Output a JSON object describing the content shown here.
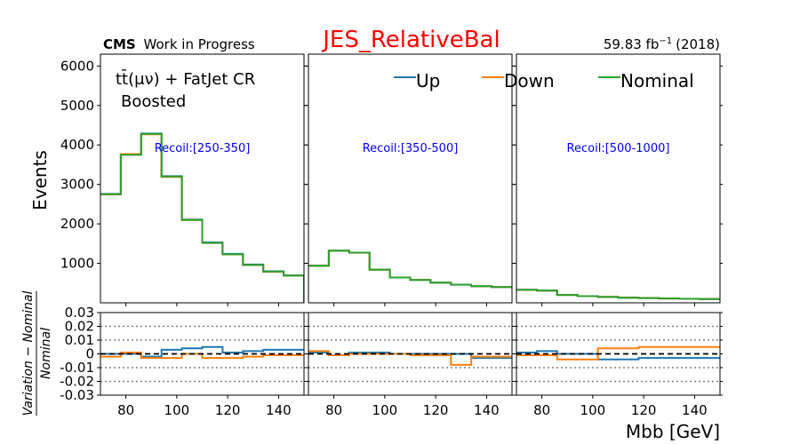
{
  "figure": {
    "cms_label": "CMS",
    "cms_suffix": "Work in Progress",
    "title": "JES_RelativeBal",
    "title_color": "#ff0000",
    "lumi_value": "59.83 fb",
    "lumi_exponent": "−1",
    "lumi_year": "(2018)",
    "region_line1": "tt̄(μν) + FatJet CR",
    "region_line2": "Boosted",
    "top_ylabel": "Events",
    "ratio_ylabel": "Variation − Nominal / Nominal",
    "ratio_ylabel_num": "Variation − Nominal",
    "ratio_ylabel_den": "Nominal",
    "xlabel": "Mbb [GeV]"
  },
  "legend": [
    {
      "label": "Up",
      "color": "#1f77b4"
    },
    {
      "label": "Down",
      "color": "#ff7f0e"
    },
    {
      "label": "Nominal",
      "color": "#2ca02c"
    }
  ],
  "chart_data": {
    "type": "line",
    "drawstyle": "step",
    "x_edges": [
      70,
      78,
      86,
      94,
      102,
      110,
      118,
      126,
      134,
      142,
      150
    ],
    "xlim": [
      70,
      150
    ],
    "x_ticks": [
      80,
      100,
      120,
      140
    ],
    "x_tick_labels": [
      "80",
      "100",
      "120",
      "140"
    ],
    "top_ylim": [
      0,
      6300
    ],
    "top_y_ticks": [
      1000,
      2000,
      3000,
      4000,
      5000,
      6000
    ],
    "top_y_tick_labels": [
      "1000",
      "2000",
      "3000",
      "4000",
      "5000",
      "6000"
    ],
    "ratio_ylim": [
      -0.03,
      0.03
    ],
    "ratio_y_ticks": [
      -0.03,
      -0.02,
      -0.01,
      0,
      0.01,
      0.02,
      0.03
    ],
    "ratio_y_tick_labels": [
      "-0.03",
      "-0.02",
      "-0.01",
      "0",
      "0.01",
      "0.02",
      "0.03"
    ],
    "ratio_dotted_lines": [
      -0.02,
      -0.01,
      0.01,
      0.02
    ],
    "panels": [
      {
        "label": "Recoil:[250-350]",
        "nominal": [
          2750,
          3750,
          4280,
          3200,
          2100,
          1520,
          1230,
          960,
          790,
          690
        ],
        "up": [
          2760,
          3760,
          4290,
          3210,
          2110,
          1530,
          1240,
          970,
          800,
          695
        ],
        "down": [
          2745,
          3770,
          4270,
          3190,
          2095,
          1515,
          1225,
          955,
          785,
          688
        ],
        "ratio_up": [
          0.0,
          0.0,
          -0.002,
          0.003,
          0.004,
          0.005,
          0.001,
          0.002,
          0.003,
          0.003
        ],
        "ratio_down": [
          -0.002,
          0.001,
          -0.003,
          -0.003,
          0.0,
          -0.003,
          -0.003,
          -0.002,
          -0.001,
          -0.001
        ]
      },
      {
        "label": "Recoil:[350-500]",
        "nominal": [
          940,
          1320,
          1270,
          840,
          640,
          580,
          510,
          460,
          420,
          400
        ],
        "up": [
          942,
          1322,
          1272,
          841,
          640,
          580,
          511,
          459,
          421,
          399
        ],
        "down": [
          938,
          1318,
          1268,
          839,
          641,
          581,
          509,
          461,
          419,
          401
        ],
        "ratio_up": [
          0.001,
          -0.001,
          0.001,
          0.001,
          0.0,
          0.0,
          0.0,
          0.0,
          -0.003,
          -0.003
        ],
        "ratio_down": [
          0.002,
          -0.001,
          0.0,
          0.0,
          0.0,
          -0.001,
          -0.001,
          -0.008,
          -0.002,
          -0.002
        ]
      },
      {
        "label": "Recoil:[500-1000]",
        "nominal": [
          330,
          310,
          200,
          170,
          150,
          130,
          120,
          110,
          100,
          95
        ],
        "up": [
          331,
          311,
          200,
          170,
          150,
          130,
          120,
          110,
          100,
          95
        ],
        "down": [
          329,
          309,
          199,
          169,
          151,
          131,
          121,
          111,
          101,
          96
        ],
        "ratio_up": [
          0.001,
          0.002,
          0.0,
          0.0,
          -0.004,
          -0.004,
          -0.003,
          -0.003,
          -0.003,
          -0.003
        ],
        "ratio_down": [
          -0.001,
          -0.001,
          -0.004,
          -0.004,
          0.004,
          0.004,
          0.005,
          0.005,
          0.005,
          0.005
        ]
      }
    ],
    "grid": false,
    "legend_position": "top-right"
  }
}
